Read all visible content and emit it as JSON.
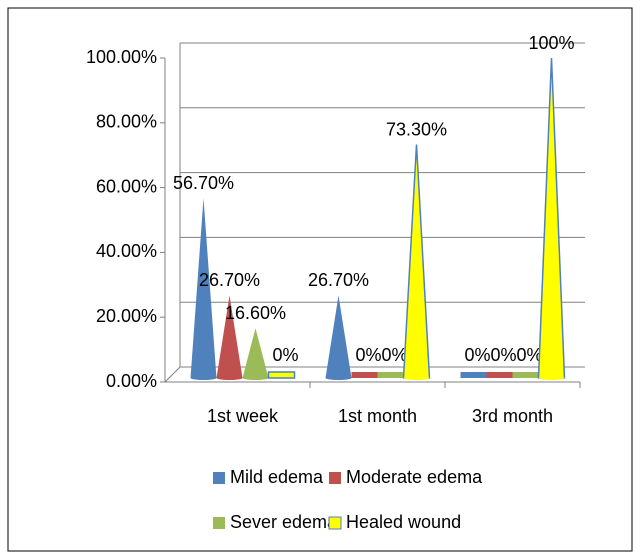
{
  "chart_data": {
    "type": "cone",
    "categories": [
      "1st week",
      "1st month",
      "3rd month"
    ],
    "series": [
      {
        "name": "Mild edema",
        "color": "#4f81bd",
        "values": [
          56.7,
          26.7,
          0
        ],
        "value_labels": [
          "56.70%",
          "26.70%",
          "0%"
        ]
      },
      {
        "name": "Moderate edema",
        "color": "#c0504d",
        "values": [
          26.7,
          0,
          0
        ],
        "value_labels": [
          "26.70%",
          "0%",
          "0%"
        ]
      },
      {
        "name": "Sever edema",
        "color": "#9bbb59",
        "values": [
          16.6,
          0,
          0
        ],
        "value_labels": [
          "16.60%",
          "0%",
          "0%"
        ]
      },
      {
        "name": "Healed wound",
        "color": "#ffff00",
        "values": [
          0,
          73.3,
          100
        ],
        "value_labels": [
          "0%",
          "73.30%",
          "100%"
        ]
      }
    ],
    "ylim": [
      0,
      100
    ],
    "yticks": [
      {
        "value": 0,
        "label": "0.00%"
      },
      {
        "value": 20,
        "label": "20.00%"
      },
      {
        "value": 40,
        "label": "40.00%"
      },
      {
        "value": 60,
        "label": "60.00%"
      },
      {
        "value": 80,
        "label": "80.00%"
      },
      {
        "value": 100,
        "label": "100.00%"
      }
    ],
    "grid": true,
    "legend": "bottom"
  }
}
